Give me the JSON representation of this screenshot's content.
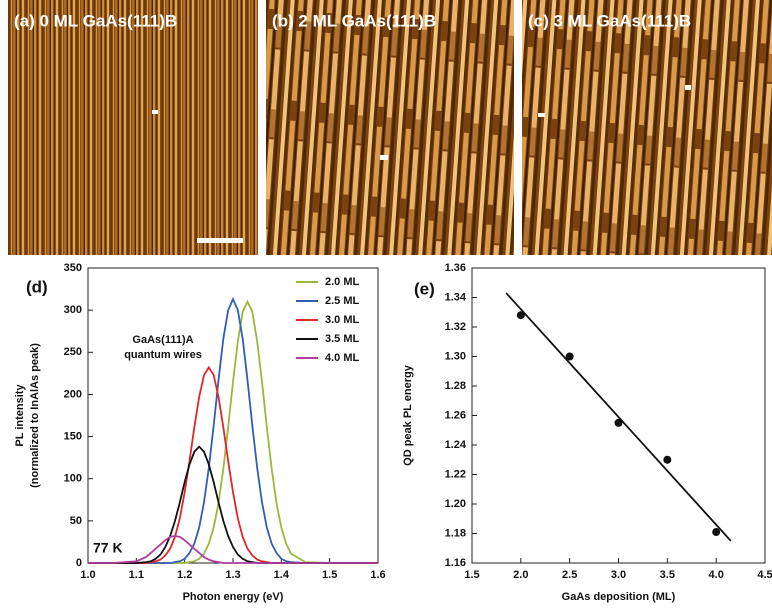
{
  "panels": [
    "(a) 0 ML GaAs(111)B",
    "(b) 2 ML GaAs(111)B",
    "(c) 3 ML GaAs(111)B"
  ],
  "chart_data": [
    {
      "type": "line",
      "title": "(d)",
      "xlabel": "Photon energy (eV)",
      "ylabel": [
        "PL intensity",
        "(normalized to InAlAs peak)"
      ],
      "annotations": [
        [
          "GaAs(111)A",
          "quantum wires"
        ],
        [
          "77 K"
        ]
      ],
      "x": [
        1.0,
        1.05,
        1.1,
        1.12,
        1.13,
        1.14,
        1.15,
        1.16,
        1.17,
        1.18,
        1.19,
        1.2,
        1.21,
        1.22,
        1.23,
        1.24,
        1.25,
        1.26,
        1.27,
        1.28,
        1.29,
        1.3,
        1.31,
        1.32,
        1.33,
        1.34,
        1.35,
        1.36,
        1.37,
        1.38,
        1.39,
        1.4,
        1.41,
        1.42,
        1.45,
        1.5,
        1.55,
        1.6
      ],
      "series": [
        {
          "name": "2.0 ML",
          "color": "#9ab83c",
          "values": [
            0,
            0,
            0,
            0,
            0,
            0,
            0,
            0,
            0,
            0,
            0,
            0,
            1,
            2,
            5,
            11,
            23,
            42,
            71,
            112,
            161,
            215,
            263,
            298,
            310,
            298,
            263,
            215,
            161,
            112,
            71,
            42,
            23,
            11,
            1,
            0,
            0,
            0
          ]
        },
        {
          "name": "2.5 ML",
          "color": "#2f5eb5",
          "values": [
            0,
            0,
            0,
            0,
            0,
            0,
            0,
            0,
            0,
            1,
            2,
            5,
            12,
            23,
            42,
            72,
            113,
            163,
            217,
            266,
            300,
            313,
            300,
            266,
            217,
            163,
            113,
            72,
            42,
            23,
            12,
            5,
            2,
            1,
            0,
            0,
            0,
            0
          ]
        },
        {
          "name": "3.0 ML",
          "color": "#e0262a",
          "values": [
            0,
            0,
            0,
            0,
            1,
            2,
            4,
            9,
            17,
            31,
            53,
            84,
            121,
            161,
            197,
            223,
            232,
            223,
            197,
            161,
            121,
            84,
            53,
            31,
            17,
            9,
            4,
            2,
            1,
            0,
            0,
            0,
            0,
            0,
            0,
            0,
            0,
            0
          ]
        },
        {
          "name": "3.5 ML",
          "color": "#111111",
          "values": [
            0,
            0,
            0,
            1,
            2,
            5,
            10,
            19,
            32,
            50,
            72,
            96,
            117,
            132,
            138,
            132,
            117,
            96,
            72,
            50,
            32,
            19,
            10,
            5,
            2,
            1,
            0,
            0,
            0,
            0,
            0,
            0,
            0,
            0,
            0,
            0,
            0,
            0
          ]
        },
        {
          "name": "4.0 ML",
          "color": "#b03c9c",
          "values": [
            0,
            0,
            2,
            7,
            12,
            17,
            22,
            27,
            31,
            32,
            31,
            27,
            22,
            17,
            12,
            7,
            4,
            2,
            1,
            0,
            0,
            0,
            0,
            0,
            0,
            0,
            0,
            0,
            0,
            0,
            0,
            0,
            0,
            0,
            0,
            0,
            0,
            0
          ]
        }
      ],
      "xlim": [
        1.0,
        1.6
      ],
      "xticks": [
        {
          "value": 1.0,
          "label": "1.0"
        },
        1.1,
        1.2,
        1.3,
        1.4,
        1.5,
        1.6
      ],
      "ylim": [
        0,
        350
      ],
      "yticks": [
        0,
        50,
        100,
        150,
        200,
        250,
        300,
        350
      ]
    },
    {
      "type": "scatter",
      "title": "(e)",
      "xlabel": "GaAs deposition (ML)",
      "ylabel": [
        "QD peak PL energy"
      ],
      "x": [
        2.0,
        2.5,
        3.0,
        3.5,
        4.0
      ],
      "values": [
        1.328,
        1.3,
        1.255,
        1.23,
        1.181
      ],
      "color": "#111111",
      "fit": {
        "x": [
          1.85,
          4.15
        ],
        "values": [
          1.343,
          1.175
        ],
        "color": "#111111"
      },
      "xlim": [
        1.5,
        4.5
      ],
      "xticks": [
        1.5,
        {
          "value": 2.0,
          "label": "2.0"
        },
        2.5,
        {
          "value": 3.0,
          "label": "3.0"
        },
        3.5,
        {
          "value": 4.0,
          "label": "4.0"
        },
        4.5
      ],
      "ylim": [
        1.16,
        1.36
      ],
      "yticks": [
        1.16,
        1.18,
        {
          "value": 1.2,
          "label": "1.20"
        },
        1.22,
        1.24,
        1.26,
        1.28,
        {
          "value": 1.3,
          "label": "1.30"
        },
        1.32,
        1.34,
        1.36
      ]
    }
  ]
}
